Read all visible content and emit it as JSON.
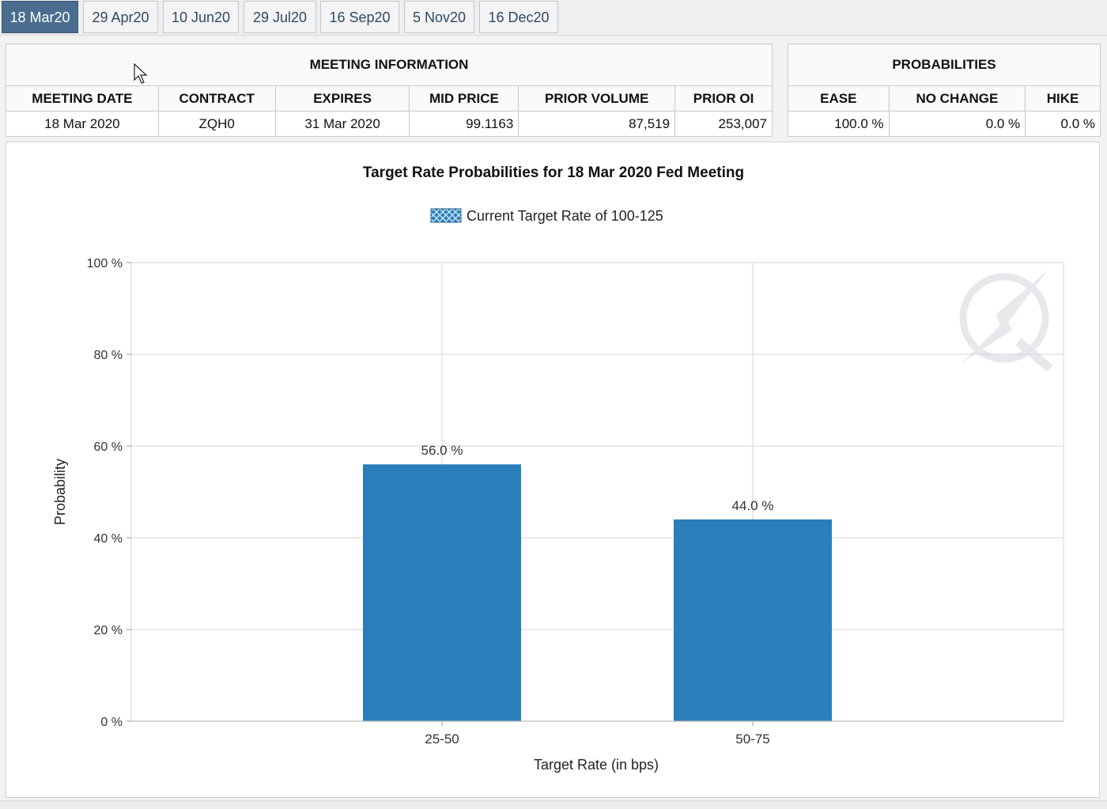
{
  "tabs": [
    "18 Mar20",
    "29 Apr20",
    "10 Jun20",
    "29 Jul20",
    "16 Sep20",
    "5 Nov20",
    "16 Dec20"
  ],
  "active_tab": 0,
  "meeting_info": {
    "group_title": "MEETING INFORMATION",
    "headers": [
      "MEETING DATE",
      "CONTRACT",
      "EXPIRES",
      "MID PRICE",
      "PRIOR VOLUME",
      "PRIOR OI"
    ],
    "row": [
      "18 Mar 2020",
      "ZQH0",
      "31 Mar 2020",
      "99.1163",
      "87,519",
      "253,007"
    ]
  },
  "probabilities": {
    "group_title": "PROBABILITIES",
    "headers": [
      "EASE",
      "NO CHANGE",
      "HIKE"
    ],
    "row": [
      "100.0 %",
      "0.0 %",
      "0.0 %"
    ]
  },
  "chart_data": {
    "type": "bar",
    "title": "Target Rate Probabilities for 18 Mar 2020 Fed Meeting",
    "legend": "Current Target Rate of 100-125",
    "legend_position": "top-center",
    "xlabel": "Target Rate (in bps)",
    "ylabel": "Probability",
    "categories": [
      "25-50",
      "50-75"
    ],
    "values": [
      56.0,
      44.0
    ],
    "data_labels": [
      "56.0 %",
      "44.0 %"
    ],
    "ylim": [
      0,
      100
    ],
    "yticks": [
      0,
      20,
      40,
      60,
      80,
      100
    ],
    "ytick_labels": [
      "0 %",
      "20 %",
      "40 %",
      "60 %",
      "80 %",
      "100 %"
    ],
    "grid": true,
    "bar_color": "#2a7fba"
  }
}
